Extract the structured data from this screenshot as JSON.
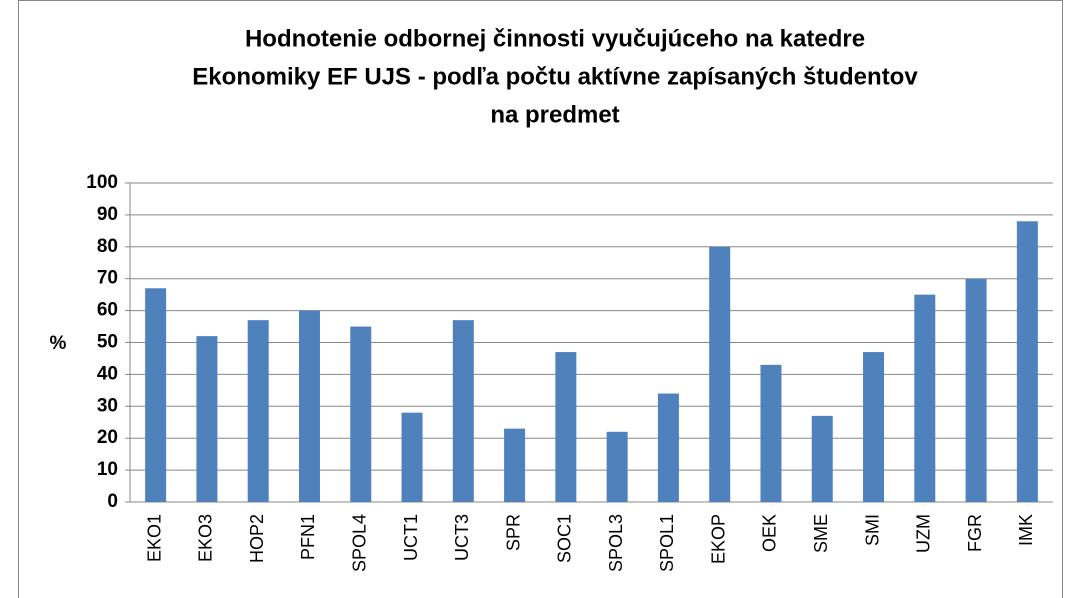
{
  "chart_data": {
    "type": "bar",
    "title": [
      "Hodnotenie odbornej činnosti vyučujúceho na katedre",
      "Ekonomiky EF UJS - podľa počtu aktívne zapísaných študentov",
      "na predmet"
    ],
    "y_label": "%",
    "categories": [
      "EKO1",
      "EKO3",
      "HOP2",
      "PFN1",
      "SPOL4",
      "UCT1",
      "UCT3",
      "SPR",
      "SOC1",
      "SPOL3",
      "SPOL1",
      "EKOP",
      "OEK",
      "SME",
      "SMI",
      "UZM",
      "FGR",
      "IMK"
    ],
    "values": [
      67,
      52,
      57,
      60,
      55,
      28,
      57,
      23,
      47,
      22,
      34,
      80,
      43,
      27,
      47,
      65,
      70,
      88
    ],
    "color": "#4f81bd",
    "ylim": [
      0,
      100
    ],
    "yticks": [
      0,
      10,
      20,
      30,
      40,
      50,
      60,
      70,
      80,
      90,
      100
    ],
    "grid": true
  }
}
